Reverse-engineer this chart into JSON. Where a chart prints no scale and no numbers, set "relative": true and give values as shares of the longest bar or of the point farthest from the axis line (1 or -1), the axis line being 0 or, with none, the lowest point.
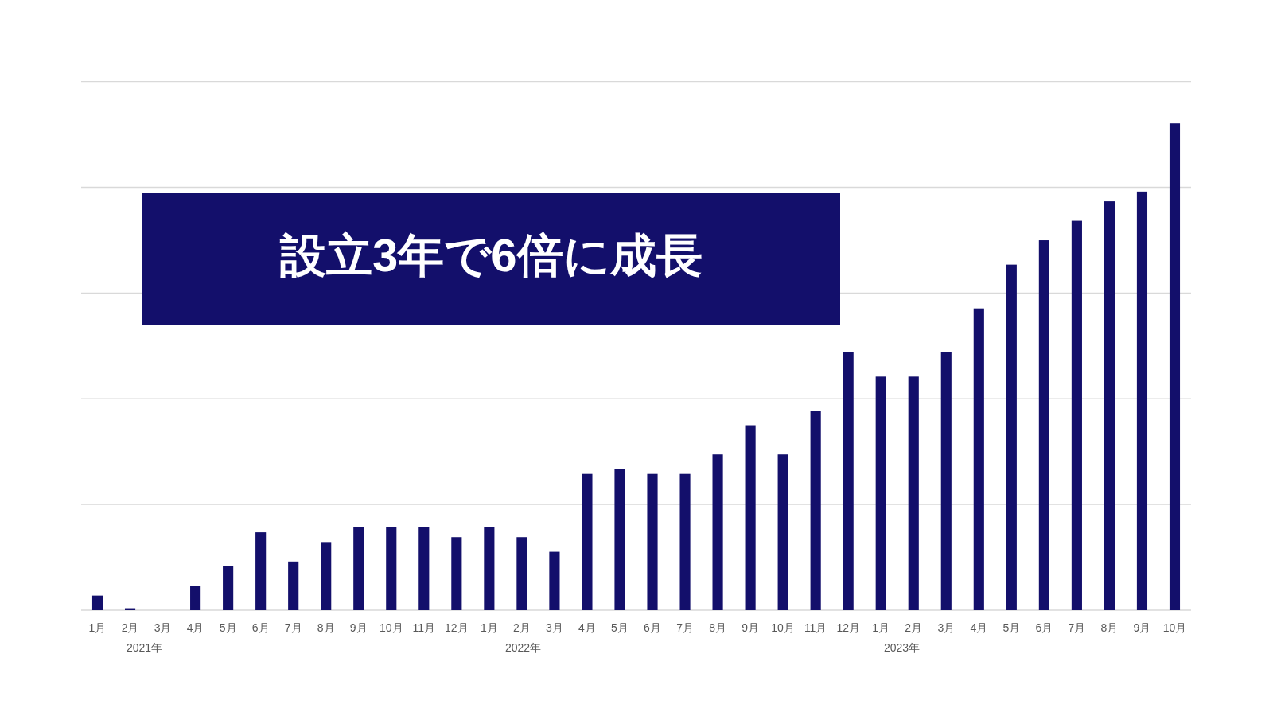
{
  "chart_data": {
    "type": "bar",
    "title": "設立3年で6倍に成長",
    "categories": [
      "1月",
      "2月",
      "3月",
      "4月",
      "5月",
      "6月",
      "7月",
      "8月",
      "9月",
      "10月",
      "11月",
      "12月",
      "1月",
      "2月",
      "3月",
      "4月",
      "5月",
      "6月",
      "7月",
      "8月",
      "9月",
      "10月",
      "11月",
      "12月",
      "1月",
      "2月",
      "3月",
      "4月",
      "5月",
      "6月",
      "7月",
      "8月",
      "9月",
      "10月"
    ],
    "values": [
      0.03,
      0.004,
      0,
      0.05,
      0.09,
      0.16,
      0.1,
      0.14,
      0.17,
      0.17,
      0.17,
      0.15,
      0.17,
      0.15,
      0.12,
      0.28,
      0.29,
      0.28,
      0.28,
      0.32,
      0.38,
      0.32,
      0.41,
      0.53,
      0.48,
      0.48,
      0.53,
      0.62,
      0.71,
      0.76,
      0.8,
      0.84,
      0.86,
      1
    ],
    "color": "#130f6b",
    "relative": true,
    "grid": "y",
    "annotations": [
      "2021年",
      "2022年",
      "2023年"
    ]
  }
}
